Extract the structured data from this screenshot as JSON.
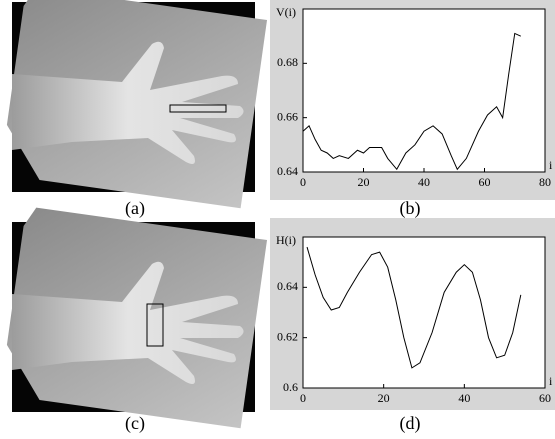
{
  "panels": [
    {
      "label": "(a)"
    },
    {
      "label": "(c)"
    }
  ],
  "chart_data": [
    {
      "type": "line",
      "ylabel": "V(i)",
      "xlabel": "i",
      "caption": "(b)",
      "x": [
        0,
        2,
        4,
        6,
        8,
        10,
        12,
        15,
        18,
        20,
        22,
        24,
        26,
        28,
        31,
        34,
        37,
        40,
        43,
        46,
        49,
        51,
        54,
        58,
        61,
        64,
        66,
        68,
        70,
        72
      ],
      "series": [
        {
          "color": "#000000",
          "values": [
            0.655,
            0.657,
            0.652,
            0.648,
            0.647,
            0.645,
            0.646,
            0.645,
            0.648,
            0.647,
            0.649,
            0.649,
            0.649,
            0.645,
            0.641,
            0.647,
            0.65,
            0.655,
            0.657,
            0.654,
            0.646,
            0.641,
            0.645,
            0.655,
            0.661,
            0.664,
            0.66,
            0.676,
            0.691,
            0.69
          ]
        }
      ],
      "xlim": [
        0,
        80
      ],
      "ylim": [
        0.64,
        0.7
      ],
      "xticks": [
        0,
        20,
        40,
        60,
        80
      ],
      "yticks": [
        0.64,
        0.66,
        0.68
      ]
    },
    {
      "type": "line",
      "ylabel": "H(i)",
      "xlabel": "i",
      "caption": "(d)",
      "x": [
        1,
        3,
        5,
        7,
        9,
        11,
        14,
        17,
        19,
        21,
        23,
        25,
        27,
        29,
        32,
        35,
        38,
        40,
        42,
        44,
        46,
        48,
        50,
        52,
        54
      ],
      "series": [
        {
          "color": "#000000",
          "values": [
            0.656,
            0.645,
            0.636,
            0.631,
            0.632,
            0.638,
            0.646,
            0.653,
            0.654,
            0.648,
            0.635,
            0.62,
            0.608,
            0.61,
            0.622,
            0.638,
            0.646,
            0.649,
            0.646,
            0.635,
            0.62,
            0.612,
            0.613,
            0.622,
            0.637
          ]
        }
      ],
      "xlim": [
        0,
        60
      ],
      "ylim": [
        0.6,
        0.66
      ],
      "xticks": [
        0,
        20,
        40,
        60
      ],
      "yticks": [
        0.6,
        0.62,
        0.64
      ]
    }
  ]
}
